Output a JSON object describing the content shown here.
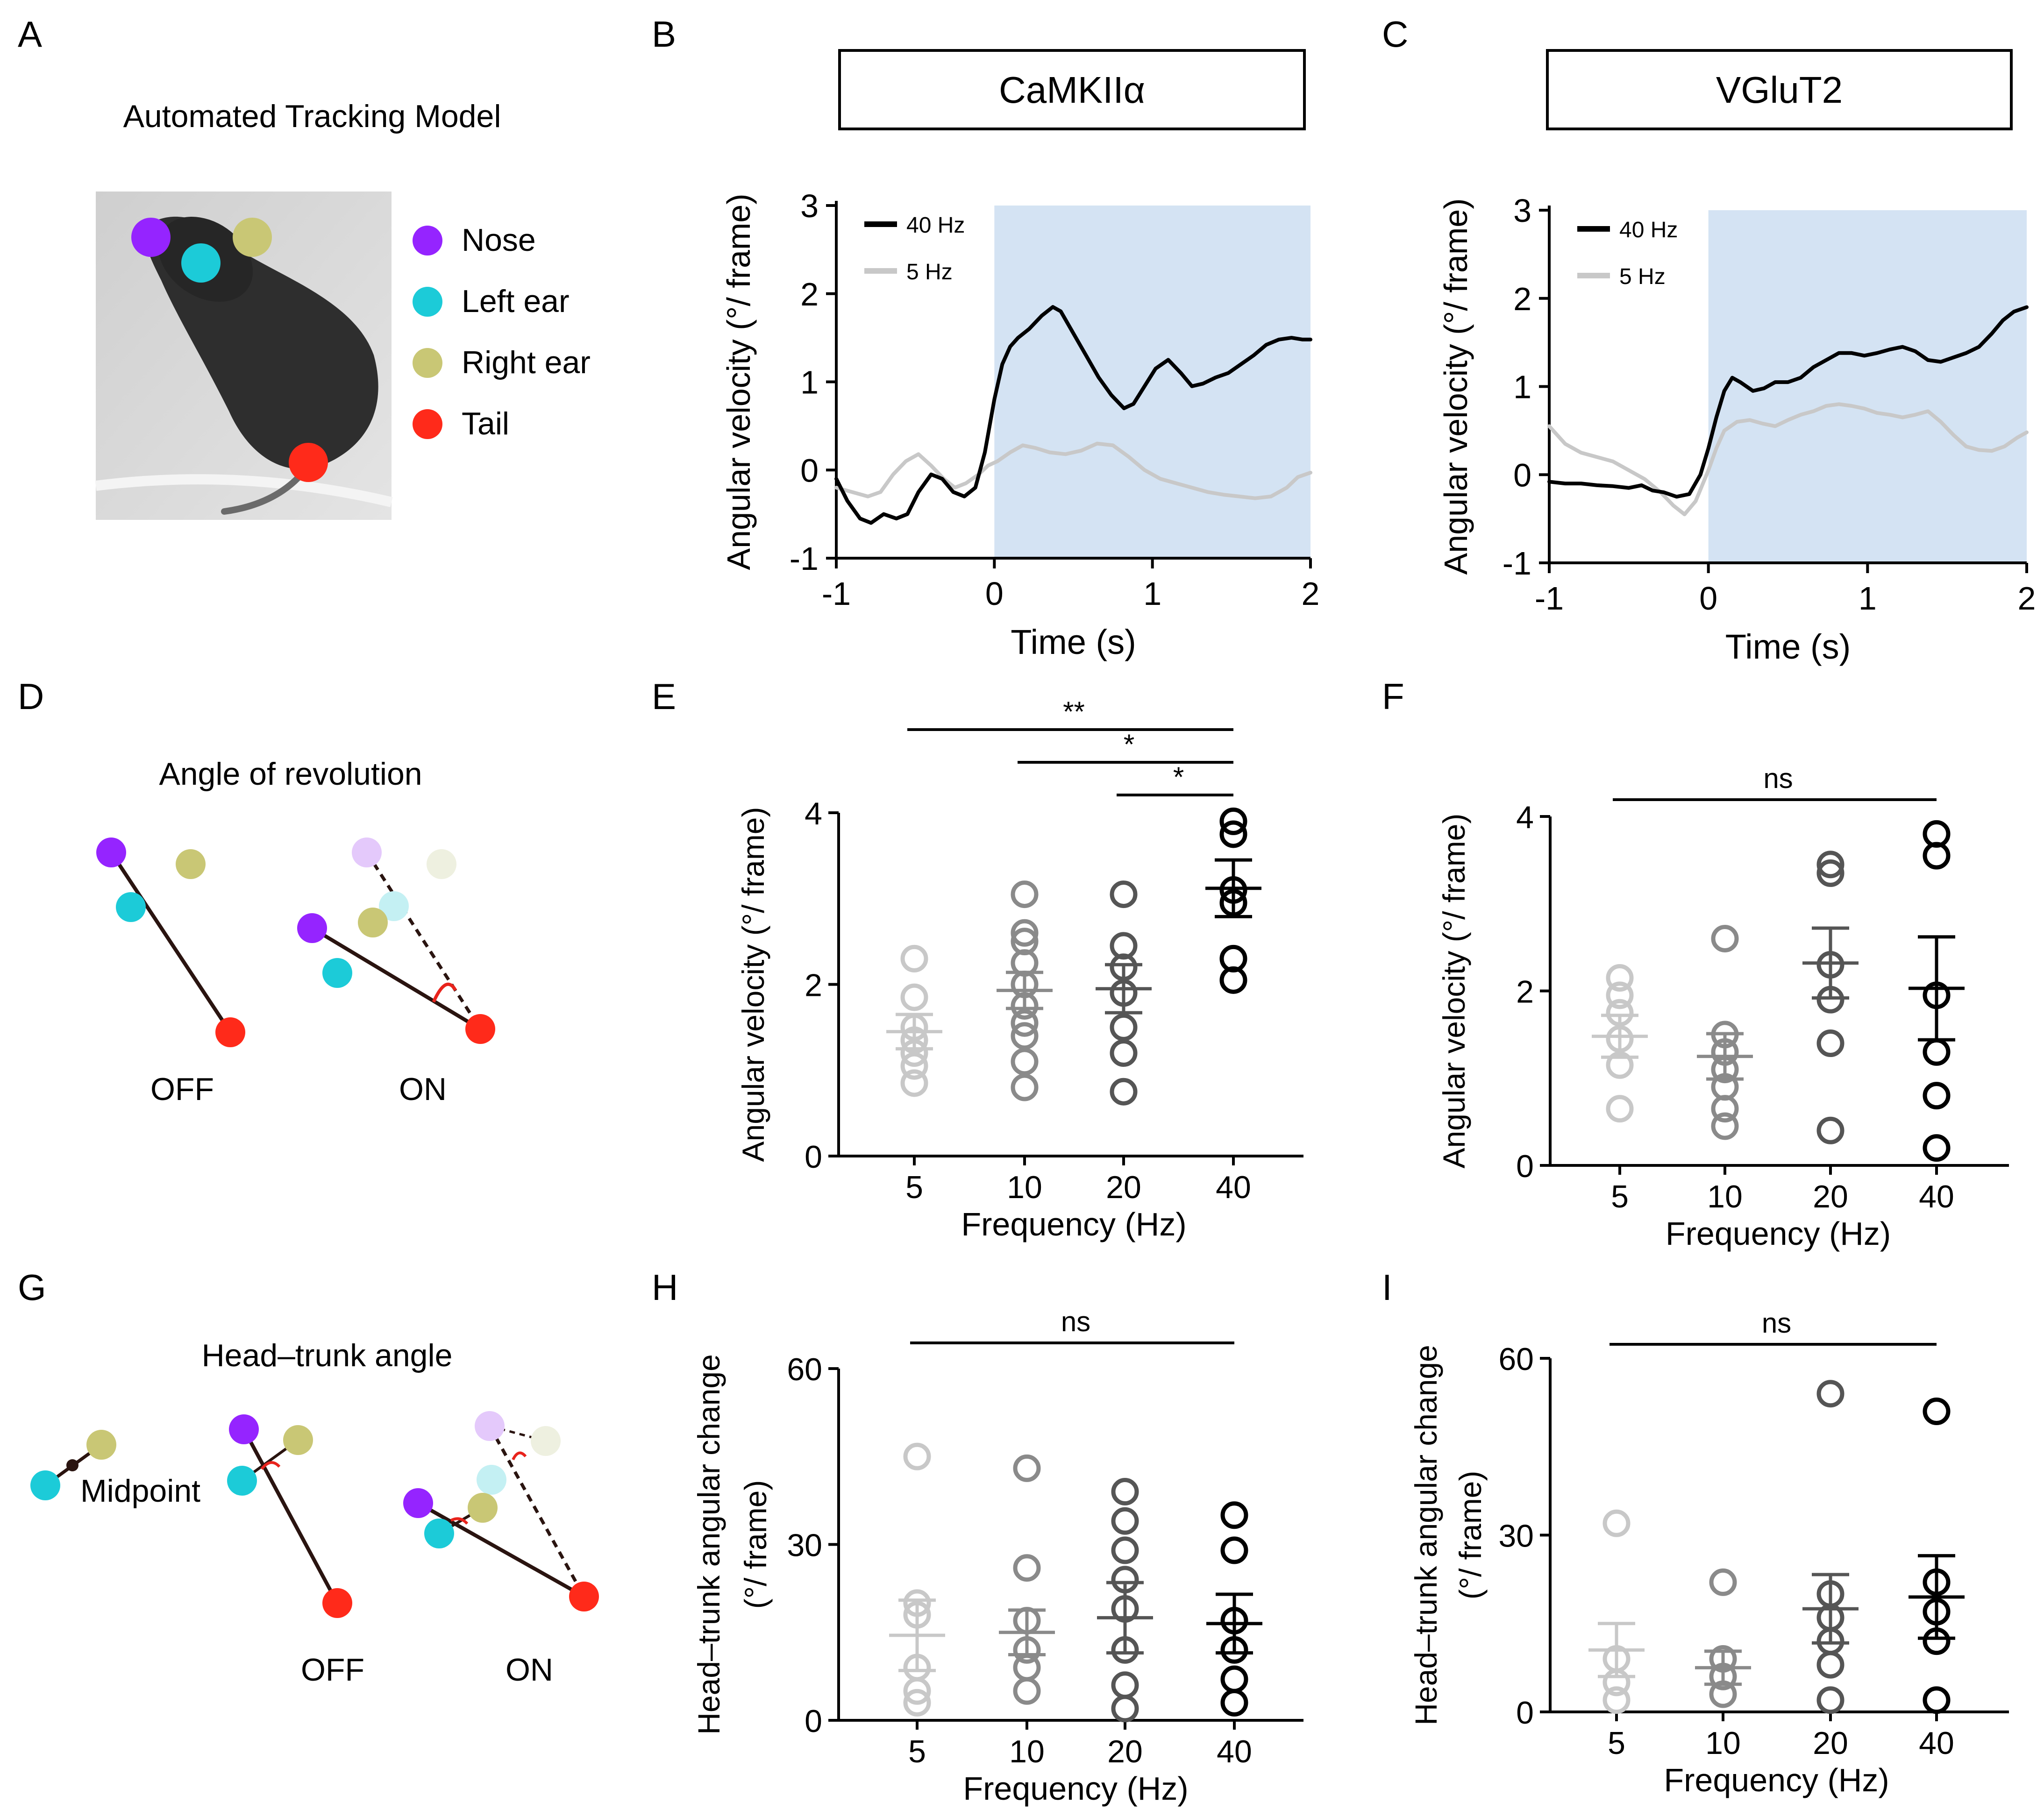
{
  "colors": {
    "black": "#000000",
    "dark_gray": "#333333",
    "mid_gray": "#555555",
    "gray": "#8a8a8a",
    "light_gray": "#c8c8c8",
    "stim_shade": "#d4e3f3",
    "nose": "#9524ff",
    "left_ear": "#1ccbd8",
    "right_ear": "#c9c775",
    "tail": "#ff2a1a",
    "angle_arc": "#e8231c",
    "mouse_bg": "#d8d8d8",
    "mouse_body": "#2c2c2c"
  },
  "panels": {
    "A": {
      "letter": "A",
      "title": "Automated Tracking Model",
      "legend": [
        {
          "label": "Nose",
          "color": "#9524ff"
        },
        {
          "label": "Left ear",
          "color": "#1ccbd8"
        },
        {
          "label": "Right ear",
          "color": "#c9c775"
        },
        {
          "label": "Tail",
          "color": "#ff2a1a"
        }
      ]
    },
    "D": {
      "letter": "D",
      "title": "Angle of revolution",
      "off_label": "OFF",
      "on_label": "ON"
    },
    "G": {
      "letter": "G",
      "title": "Head–trunk angle",
      "midpoint_label": "Midpoint",
      "off_label": "OFF",
      "on_label": "ON"
    }
  },
  "chart_data": [
    {
      "id": "B",
      "letter": "B",
      "type": "line",
      "boxed_title": "CaMKIIα",
      "xlabel": "Time (s)",
      "ylabel": "Angular velocity (°/ frame)",
      "xlim": [
        -1,
        2
      ],
      "ylim": [
        -1,
        3
      ],
      "xticks": [
        -1,
        0,
        1,
        2
      ],
      "yticks": [
        -1,
        0,
        1,
        2,
        3
      ],
      "stim_window": [
        0,
        2
      ],
      "legend": [
        "40 Hz",
        "5 Hz"
      ],
      "series": [
        {
          "name": "40 Hz",
          "x": [
            -1.0,
            -0.93,
            -0.85,
            -0.78,
            -0.7,
            -0.62,
            -0.55,
            -0.48,
            -0.4,
            -0.33,
            -0.26,
            -0.19,
            -0.12,
            -0.06,
            0.0,
            0.05,
            0.1,
            0.15,
            0.22,
            0.3,
            0.37,
            0.42,
            0.5,
            0.58,
            0.66,
            0.74,
            0.82,
            0.88,
            0.95,
            1.02,
            1.1,
            1.18,
            1.25,
            1.32,
            1.4,
            1.48,
            1.56,
            1.64,
            1.72,
            1.8,
            1.88,
            1.95,
            2.0
          ],
          "values": [
            -0.1,
            -0.35,
            -0.55,
            -0.6,
            -0.5,
            -0.55,
            -0.5,
            -0.25,
            -0.05,
            -0.1,
            -0.25,
            -0.3,
            -0.2,
            0.2,
            0.8,
            1.2,
            1.4,
            1.5,
            1.6,
            1.75,
            1.85,
            1.8,
            1.55,
            1.3,
            1.05,
            0.85,
            0.7,
            0.75,
            0.95,
            1.15,
            1.25,
            1.1,
            0.95,
            0.98,
            1.05,
            1.1,
            1.2,
            1.3,
            1.42,
            1.48,
            1.5,
            1.48,
            1.48
          ]
        },
        {
          "name": "5 Hz",
          "x": [
            -1.0,
            -0.9,
            -0.8,
            -0.72,
            -0.64,
            -0.56,
            -0.48,
            -0.4,
            -0.32,
            -0.25,
            -0.18,
            -0.1,
            -0.04,
            0.02,
            0.1,
            0.18,
            0.26,
            0.35,
            0.45,
            0.55,
            0.65,
            0.75,
            0.85,
            0.95,
            1.05,
            1.15,
            1.25,
            1.35,
            1.45,
            1.55,
            1.65,
            1.75,
            1.85,
            1.92,
            2.0
          ],
          "values": [
            -0.2,
            -0.25,
            -0.3,
            -0.25,
            -0.05,
            0.1,
            0.18,
            0.05,
            -0.1,
            -0.2,
            -0.15,
            -0.05,
            0.05,
            0.1,
            0.2,
            0.28,
            0.25,
            0.2,
            0.18,
            0.22,
            0.3,
            0.28,
            0.15,
            0.0,
            -0.1,
            -0.15,
            -0.2,
            -0.25,
            -0.28,
            -0.3,
            -0.32,
            -0.3,
            -0.2,
            -0.08,
            -0.03
          ]
        }
      ]
    },
    {
      "id": "C",
      "letter": "C",
      "type": "line",
      "boxed_title": "VGluT2",
      "xlabel": "Time (s)",
      "ylabel": "Angular velocity (°/ frame)",
      "xlim": [
        -1,
        2
      ],
      "ylim": [
        -1,
        3
      ],
      "xticks": [
        -1,
        0,
        1,
        2
      ],
      "yticks": [
        -1,
        0,
        1,
        2,
        3
      ],
      "stim_window": [
        0,
        2
      ],
      "legend": [
        "40 Hz",
        "5 Hz"
      ],
      "series": [
        {
          "name": "40 Hz",
          "x": [
            -1.0,
            -0.9,
            -0.8,
            -0.7,
            -0.6,
            -0.5,
            -0.42,
            -0.35,
            -0.28,
            -0.2,
            -0.12,
            -0.05,
            0.0,
            0.05,
            0.1,
            0.15,
            0.2,
            0.28,
            0.35,
            0.42,
            0.5,
            0.58,
            0.66,
            0.74,
            0.82,
            0.9,
            0.98,
            1.06,
            1.14,
            1.22,
            1.3,
            1.38,
            1.46,
            1.54,
            1.62,
            1.7,
            1.78,
            1.85,
            1.92,
            2.0
          ],
          "values": [
            -0.08,
            -0.1,
            -0.1,
            -0.12,
            -0.13,
            -0.15,
            -0.12,
            -0.18,
            -0.2,
            -0.25,
            -0.22,
            0.0,
            0.3,
            0.65,
            0.95,
            1.1,
            1.05,
            0.95,
            0.98,
            1.05,
            1.05,
            1.1,
            1.22,
            1.3,
            1.38,
            1.38,
            1.35,
            1.38,
            1.42,
            1.45,
            1.4,
            1.3,
            1.28,
            1.33,
            1.38,
            1.45,
            1.6,
            1.75,
            1.85,
            1.9
          ]
        },
        {
          "name": "5 Hz",
          "x": [
            -1.0,
            -0.9,
            -0.8,
            -0.7,
            -0.6,
            -0.5,
            -0.4,
            -0.3,
            -0.22,
            -0.15,
            -0.08,
            0.0,
            0.05,
            0.1,
            0.18,
            0.26,
            0.34,
            0.42,
            0.5,
            0.58,
            0.66,
            0.74,
            0.82,
            0.9,
            0.98,
            1.06,
            1.14,
            1.22,
            1.3,
            1.38,
            1.46,
            1.54,
            1.62,
            1.7,
            1.78,
            1.86,
            1.94,
            2.0
          ],
          "values": [
            0.55,
            0.35,
            0.25,
            0.2,
            0.15,
            0.05,
            -0.05,
            -0.2,
            -0.35,
            -0.45,
            -0.3,
            0.05,
            0.3,
            0.5,
            0.6,
            0.62,
            0.58,
            0.55,
            0.62,
            0.68,
            0.72,
            0.78,
            0.8,
            0.78,
            0.75,
            0.7,
            0.68,
            0.65,
            0.68,
            0.72,
            0.6,
            0.45,
            0.32,
            0.28,
            0.27,
            0.32,
            0.42,
            0.48
          ]
        }
      ]
    },
    {
      "id": "E",
      "letter": "E",
      "type": "scatter",
      "xlabel": "Frequency (Hz)",
      "ylabel": "Angular velocity (°/ frame)",
      "ylabel2": "",
      "categories": [
        "5",
        "10",
        "20",
        "40"
      ],
      "ylim": [
        0,
        4
      ],
      "yticks": [
        0,
        2,
        4
      ],
      "groups": [
        {
          "name": "5",
          "points": [
            0.85,
            1.05,
            1.2,
            1.35,
            1.5,
            1.85,
            2.3
          ],
          "mean": 1.45,
          "sem": 0.2
        },
        {
          "name": "10",
          "points": [
            0.8,
            1.1,
            1.4,
            1.55,
            1.75,
            2.0,
            2.25,
            2.5,
            2.6,
            3.05
          ],
          "mean": 1.93,
          "sem": 0.21
        },
        {
          "name": "20",
          "points": [
            0.75,
            1.2,
            1.5,
            1.9,
            2.2,
            2.45,
            3.05
          ],
          "mean": 1.95,
          "sem": 0.28
        },
        {
          "name": "40",
          "points": [
            2.05,
            2.3,
            2.95,
            3.1,
            3.75,
            3.9
          ],
          "mean": 3.12,
          "sem": 0.33
        }
      ],
      "significance": [
        {
          "from": "5",
          "to": "40",
          "label": "**"
        },
        {
          "from": "10",
          "to": "40",
          "label": "*"
        },
        {
          "from": "20",
          "to": "40",
          "label": "*"
        }
      ]
    },
    {
      "id": "F",
      "letter": "F",
      "type": "scatter",
      "xlabel": "Frequency (Hz)",
      "ylabel": "Angular velocity (°/ frame)",
      "ylabel2": "",
      "categories": [
        "5",
        "10",
        "20",
        "40"
      ],
      "ylim": [
        0,
        4
      ],
      "yticks": [
        0,
        2,
        4
      ],
      "groups": [
        {
          "name": "5",
          "points": [
            0.65,
            1.15,
            1.45,
            1.75,
            1.95,
            2.15
          ],
          "mean": 1.48,
          "sem": 0.24
        },
        {
          "name": "10",
          "points": [
            0.45,
            0.65,
            0.9,
            1.1,
            1.3,
            1.5,
            2.6
          ],
          "mean": 1.25,
          "sem": 0.26
        },
        {
          "name": "20",
          "points": [
            0.4,
            1.4,
            1.9,
            2.3,
            3.35,
            3.45
          ],
          "mean": 2.32,
          "sem": 0.4
        },
        {
          "name": "40",
          "points": [
            0.2,
            0.8,
            1.3,
            1.95,
            3.55,
            3.8
          ],
          "mean": 2.03,
          "sem": 0.59
        }
      ],
      "significance": [
        {
          "from": "5",
          "to": "40",
          "label": "ns"
        }
      ]
    },
    {
      "id": "H",
      "letter": "H",
      "type": "scatter",
      "xlabel": "Frequency (Hz)",
      "ylabel": "Head–trunk angular change",
      "ylabel2": "(°/ frame)",
      "categories": [
        "5",
        "10",
        "20",
        "40"
      ],
      "ylim": [
        0,
        60
      ],
      "yticks": [
        0,
        30,
        60
      ],
      "groups": [
        {
          "name": "5",
          "points": [
            3,
            5,
            9,
            18,
            20,
            45
          ],
          "mean": 14.5,
          "sem": 6
        },
        {
          "name": "10",
          "points": [
            5,
            9,
            12,
            17,
            26,
            43
          ],
          "mean": 15,
          "sem": 3.8
        },
        {
          "name": "20",
          "points": [
            2,
            6,
            12,
            19,
            24,
            29,
            34,
            39
          ],
          "mean": 17.5,
          "sem": 6
        },
        {
          "name": "40",
          "points": [
            3,
            7,
            12,
            17,
            29,
            35
          ],
          "mean": 16.5,
          "sem": 5
        }
      ],
      "significance": [
        {
          "from": "5",
          "to": "40",
          "label": "ns"
        }
      ]
    },
    {
      "id": "I",
      "letter": "I",
      "type": "scatter",
      "xlabel": "Frequency (Hz)",
      "ylabel": "Head–trunk angular change",
      "ylabel2": "(°/ frame)",
      "categories": [
        "5",
        "10",
        "20",
        "40"
      ],
      "ylim": [
        0,
        60
      ],
      "yticks": [
        0,
        30,
        60
      ],
      "groups": [
        {
          "name": "5",
          "points": [
            2,
            5,
            9,
            32
          ],
          "mean": 10.5,
          "sem": 4.5
        },
        {
          "name": "10",
          "points": [
            3,
            6,
            9,
            22
          ],
          "mean": 7.5,
          "sem": 2.8
        },
        {
          "name": "20",
          "points": [
            2,
            8,
            12,
            16,
            20,
            54
          ],
          "mean": 17.5,
          "sem": 5.8
        },
        {
          "name": "40",
          "points": [
            2,
            12,
            17,
            22,
            51
          ],
          "mean": 19.5,
          "sem": 7
        }
      ],
      "significance": [
        {
          "from": "5",
          "to": "40",
          "label": "ns"
        }
      ]
    }
  ]
}
